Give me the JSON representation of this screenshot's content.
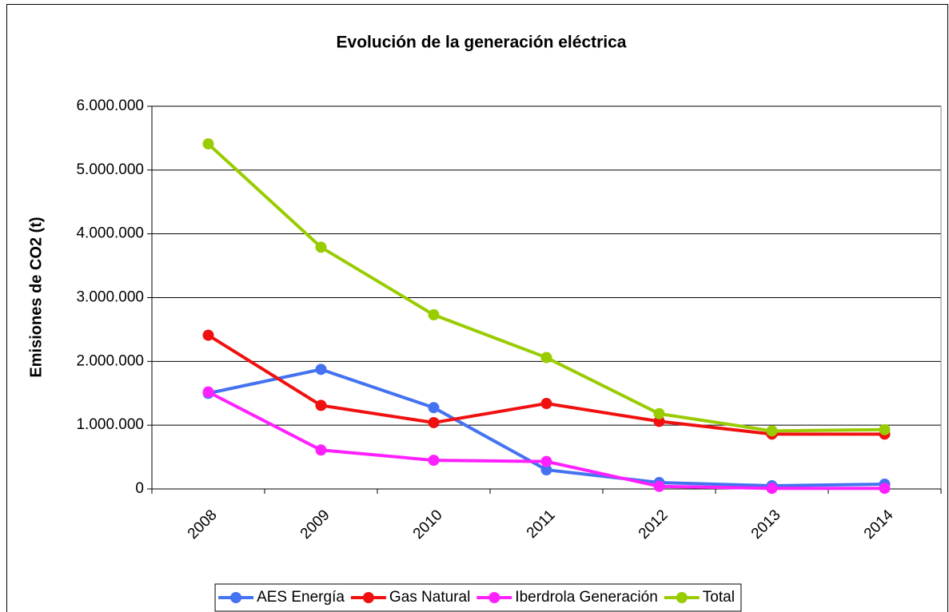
{
  "chart_data": {
    "type": "line",
    "title": "Evolución de la generación eléctrica",
    "y_label": "Emisiones de CO2 (t)",
    "categories": [
      "2008",
      "2009",
      "2010",
      "2011",
      "2012",
      "2013",
      "2014"
    ],
    "series": [
      {
        "name": "AES Energía",
        "color": "#4472f0",
        "values": [
          1500000,
          1875000,
          1275000,
          300000,
          100000,
          50000,
          75000
        ]
      },
      {
        "name": "Gas Natural",
        "color": "#f01010",
        "values": [
          2410000,
          1310000,
          1040000,
          1340000,
          1060000,
          860000,
          860000
        ]
      },
      {
        "name": "Iberdrola Generación",
        "color": "#ff20ff",
        "values": [
          1520000,
          610000,
          450000,
          430000,
          40000,
          10000,
          10000
        ]
      },
      {
        "name": "Total",
        "color": "#99cc00",
        "values": [
          5410000,
          3790000,
          2730000,
          2060000,
          1180000,
          910000,
          930000
        ]
      }
    ],
    "ylim": [
      0,
      6000000
    ],
    "yticks": [
      0,
      {
        "value": 1000000,
        "label": "1.000.000"
      },
      {
        "value": 2000000,
        "label": "2.000.000"
      },
      {
        "value": 3000000,
        "label": "3.000.000"
      },
      {
        "value": 4000000,
        "label": "4.000.000"
      },
      {
        "value": 5000000,
        "label": "5.000.000"
      },
      {
        "value": 6000000,
        "label": "6.000.000"
      }
    ],
    "grid": true,
    "legend": "bottom"
  }
}
